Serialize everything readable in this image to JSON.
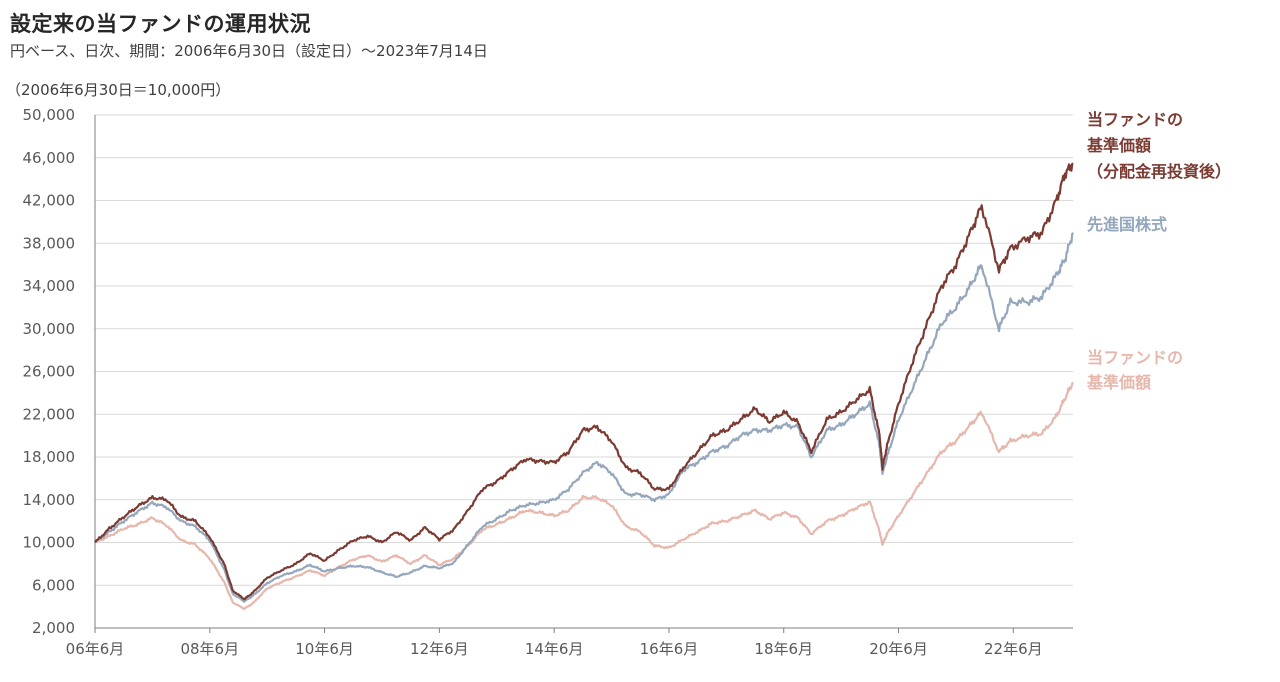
{
  "header": {
    "title": "設定来の当ファンドの運用状況",
    "subtitle": "円ベース、日次、期間：2006年6月30日（設定日）～2023年7月14日",
    "unit_note": "（2006年6月30日＝10,000円）"
  },
  "colors": {
    "fund_reinvested": "#7b3b33",
    "developed_stocks": "#94a7bd",
    "fund_nav": "#e6b8ad",
    "grid": "#d9d9d9",
    "axis": "#7f7f7f"
  },
  "chart_data": {
    "type": "line",
    "ylim": [
      2000,
      50000
    ],
    "yticks": [
      "2,000",
      "6,000",
      "10,000",
      "14,000",
      "18,000",
      "22,000",
      "26,000",
      "30,000",
      "34,000",
      "38,000",
      "42,000",
      "46,000",
      "50,000"
    ],
    "ytick_values": [
      2000,
      6000,
      10000,
      14000,
      18000,
      22000,
      26000,
      30000,
      34000,
      38000,
      42000,
      46000,
      50000
    ],
    "xlim": [
      2006.5,
      2023.54
    ],
    "xticks": [
      "06年6月",
      "08年6月",
      "10年6月",
      "12年6月",
      "14年6月",
      "16年6月",
      "18年6月",
      "20年6月",
      "22年6月"
    ],
    "xtick_values": [
      2006.5,
      2008.5,
      2010.5,
      2012.5,
      2014.5,
      2016.5,
      2018.5,
      2020.5,
      2022.5
    ],
    "grid": "horizontal",
    "series": [
      {
        "name": "当ファンドの基準価額（分配金再投資後）",
        "legend_lines": [
          "当ファンドの",
          "基準価額",
          "（分配金再投資後）"
        ],
        "color": "#7b3b33",
        "x": [
          2006.5,
          2006.75,
          2007.0,
          2007.25,
          2007.5,
          2007.75,
          2008.0,
          2008.25,
          2008.5,
          2008.75,
          2008.9,
          2009.1,
          2009.25,
          2009.5,
          2009.75,
          2010.0,
          2010.25,
          2010.5,
          2010.75,
          2011.0,
          2011.25,
          2011.5,
          2011.75,
          2012.0,
          2012.25,
          2012.5,
          2012.75,
          2013.0,
          2013.25,
          2013.5,
          2013.75,
          2014.0,
          2014.25,
          2014.5,
          2014.75,
          2015.0,
          2015.25,
          2015.5,
          2015.75,
          2016.0,
          2016.25,
          2016.5,
          2016.75,
          2017.0,
          2017.25,
          2017.5,
          2017.75,
          2018.0,
          2018.25,
          2018.5,
          2018.75,
          2018.98,
          2019.25,
          2019.5,
          2019.75,
          2020.0,
          2020.17,
          2020.22,
          2020.3,
          2020.5,
          2020.75,
          2021.0,
          2021.25,
          2021.5,
          2021.75,
          2021.95,
          2022.25,
          2022.45,
          2022.75,
          2023.0,
          2023.25,
          2023.4,
          2023.54
        ],
        "y": [
          10000,
          11300,
          12400,
          13400,
          14200,
          14000,
          12400,
          12000,
          10500,
          8000,
          5500,
          4700,
          5300,
          6700,
          7400,
          8000,
          9000,
          8300,
          9300,
          10200,
          10600,
          10000,
          11000,
          10200,
          11400,
          10300,
          11200,
          13000,
          15000,
          15700,
          16800,
          17800,
          17600,
          17500,
          18500,
          20500,
          20800,
          19500,
          17000,
          16500,
          15000,
          15000,
          17000,
          18500,
          20000,
          20500,
          21500,
          22500,
          21300,
          22200,
          21200,
          18500,
          21500,
          22200,
          23300,
          24300,
          20000,
          17000,
          19000,
          23000,
          27000,
          30500,
          34000,
          36000,
          39000,
          41500,
          35500,
          37500,
          38500,
          39000,
          42000,
          44500,
          45500
        ]
      },
      {
        "name": "先進国株式",
        "legend_lines": [
          "先進国株式"
        ],
        "color": "#94a7bd",
        "x": [
          2006.5,
          2006.75,
          2007.0,
          2007.25,
          2007.5,
          2007.75,
          2008.0,
          2008.25,
          2008.5,
          2008.75,
          2008.9,
          2009.1,
          2009.25,
          2009.5,
          2009.75,
          2010.0,
          2010.25,
          2010.5,
          2010.75,
          2011.0,
          2011.25,
          2011.5,
          2011.75,
          2012.0,
          2012.25,
          2012.5,
          2012.75,
          2013.0,
          2013.25,
          2013.5,
          2013.75,
          2014.0,
          2014.25,
          2014.5,
          2014.75,
          2015.0,
          2015.25,
          2015.5,
          2015.75,
          2016.0,
          2016.25,
          2016.5,
          2016.75,
          2017.0,
          2017.25,
          2017.5,
          2017.75,
          2018.0,
          2018.25,
          2018.5,
          2018.75,
          2018.98,
          2019.25,
          2019.5,
          2019.75,
          2020.0,
          2020.17,
          2020.22,
          2020.3,
          2020.5,
          2020.75,
          2021.0,
          2021.25,
          2021.5,
          2021.75,
          2021.95,
          2022.25,
          2022.45,
          2022.75,
          2023.0,
          2023.25,
          2023.4,
          2023.54
        ],
        "y": [
          10000,
          11000,
          12000,
          12900,
          13700,
          13300,
          12000,
          11500,
          10200,
          7500,
          5200,
          4500,
          5000,
          6200,
          6900,
          7300,
          7900,
          7300,
          7600,
          7800,
          7700,
          7200,
          6800,
          7200,
          7800,
          7600,
          8100,
          9800,
          11500,
          12200,
          13000,
          13500,
          13700,
          14000,
          15000,
          16500,
          17500,
          16500,
          14500,
          14500,
          14000,
          14500,
          16800,
          17500,
          18500,
          19000,
          20000,
          20500,
          20500,
          21000,
          20800,
          18000,
          20500,
          21000,
          22000,
          23000,
          19000,
          16500,
          18000,
          21500,
          24500,
          27500,
          30500,
          32000,
          34000,
          36000,
          30000,
          32500,
          32500,
          33000,
          35000,
          36500,
          39000
        ]
      },
      {
        "name": "当ファンドの基準価額",
        "legend_lines": [
          "当ファンドの",
          "基準価額"
        ],
        "color": "#e6b8ad",
        "x": [
          2006.5,
          2006.75,
          2007.0,
          2007.25,
          2007.5,
          2007.75,
          2008.0,
          2008.25,
          2008.5,
          2008.75,
          2008.9,
          2009.1,
          2009.25,
          2009.5,
          2009.75,
          2010.0,
          2010.25,
          2010.5,
          2010.75,
          2011.0,
          2011.25,
          2011.5,
          2011.75,
          2012.0,
          2012.25,
          2012.5,
          2012.75,
          2013.0,
          2013.25,
          2013.5,
          2013.75,
          2014.0,
          2014.25,
          2014.5,
          2014.75,
          2015.0,
          2015.25,
          2015.5,
          2015.75,
          2016.0,
          2016.25,
          2016.5,
          2016.75,
          2017.0,
          2017.25,
          2017.5,
          2017.75,
          2018.0,
          2018.25,
          2018.5,
          2018.75,
          2018.98,
          2019.25,
          2019.5,
          2019.75,
          2020.0,
          2020.17,
          2020.22,
          2020.3,
          2020.5,
          2020.75,
          2021.0,
          2021.25,
          2021.5,
          2021.75,
          2021.95,
          2022.25,
          2022.45,
          2022.75,
          2023.0,
          2023.25,
          2023.4,
          2023.54
        ],
        "y": [
          10000,
          10600,
          11300,
          11700,
          12300,
          11600,
          10200,
          9800,
          8500,
          6300,
          4400,
          3800,
          4300,
          5700,
          6300,
          6800,
          7400,
          6900,
          7700,
          8400,
          8800,
          8200,
          8800,
          8000,
          8800,
          7900,
          8500,
          9700,
          11200,
          11700,
          12300,
          13000,
          12800,
          12500,
          13000,
          14200,
          14200,
          13500,
          11500,
          11000,
          9700,
          9500,
          10300,
          11000,
          11800,
          12000,
          12500,
          13000,
          12200,
          12800,
          12300,
          10800,
          12000,
          12500,
          13200,
          13800,
          11000,
          9800,
          10800,
          12500,
          14500,
          16500,
          18500,
          19500,
          21000,
          22200,
          18500,
          19500,
          20000,
          20200,
          21800,
          23500,
          25000
        ]
      }
    ]
  }
}
